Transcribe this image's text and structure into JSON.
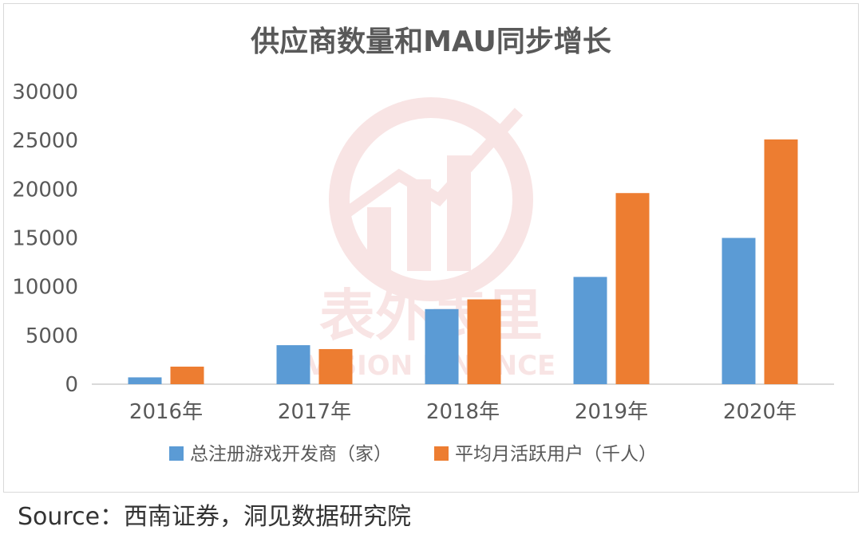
{
  "source": "Source：西南证券，洞见数据研究院",
  "watermark": {
    "text_cn": "表外表里",
    "text_en": "VISION FINANCE",
    "color": "#c00000"
  },
  "chart_data": {
    "type": "bar",
    "title": "供应商数量和MAU同步增长",
    "categories": [
      "2016年",
      "2017年",
      "2018年",
      "2019年",
      "2020年"
    ],
    "series": [
      {
        "name": "总注册游戏开发商（家）",
        "color": "#5b9bd5",
        "values": [
          700,
          4000,
          7700,
          11000,
          15000
        ]
      },
      {
        "name": "平均月活跃用户（千人）",
        "color": "#ed7d31",
        "values": [
          1800,
          3600,
          8700,
          19600,
          25100
        ]
      }
    ],
    "ylim": [
      0,
      30000
    ],
    "yticks": [
      0,
      5000,
      10000,
      15000,
      20000,
      25000,
      30000
    ],
    "grid": false,
    "legend": "bottom"
  }
}
